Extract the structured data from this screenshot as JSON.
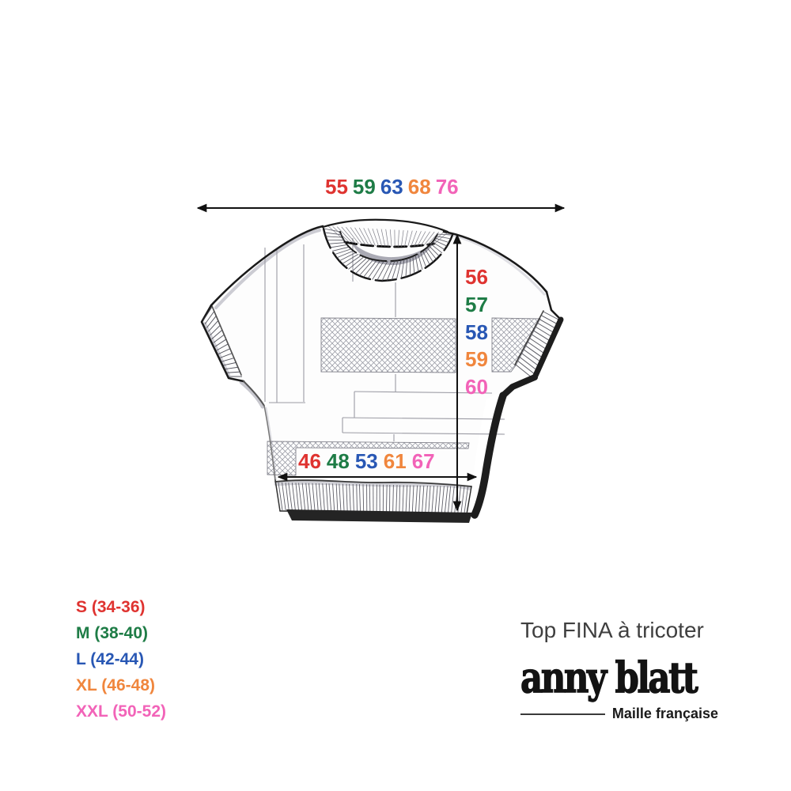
{
  "diagram": {
    "description": "Knitting pattern size schematic of a short-sleeved top",
    "measurements": {
      "top_width_cm": [
        "55",
        "59",
        "63",
        "68",
        "76"
      ],
      "length_cm": [
        "56",
        "57",
        "58",
        "59",
        "60"
      ],
      "bottom_width_cm": [
        "46",
        "48",
        "53",
        "61",
        "67"
      ]
    },
    "legend": [
      {
        "label": "S (34-36)"
      },
      {
        "label": "M (38-40)"
      },
      {
        "label": "L (42-44)"
      },
      {
        "label": "XL (46-48)"
      },
      {
        "label": "XXL (50-52)"
      }
    ]
  },
  "colors": {
    "size_s": "#df3330",
    "size_m": "#1e7c46",
    "size_l": "#2857b4",
    "size_xl": "#f0863d",
    "size_xxl": "#f263b8",
    "ink": "#1d1d1d",
    "title": "#3f3f3f"
  },
  "branding": {
    "pattern_title": "Top FINA à tricoter",
    "brand_name": "anny blatt",
    "brand_tagline": "Maille française"
  }
}
